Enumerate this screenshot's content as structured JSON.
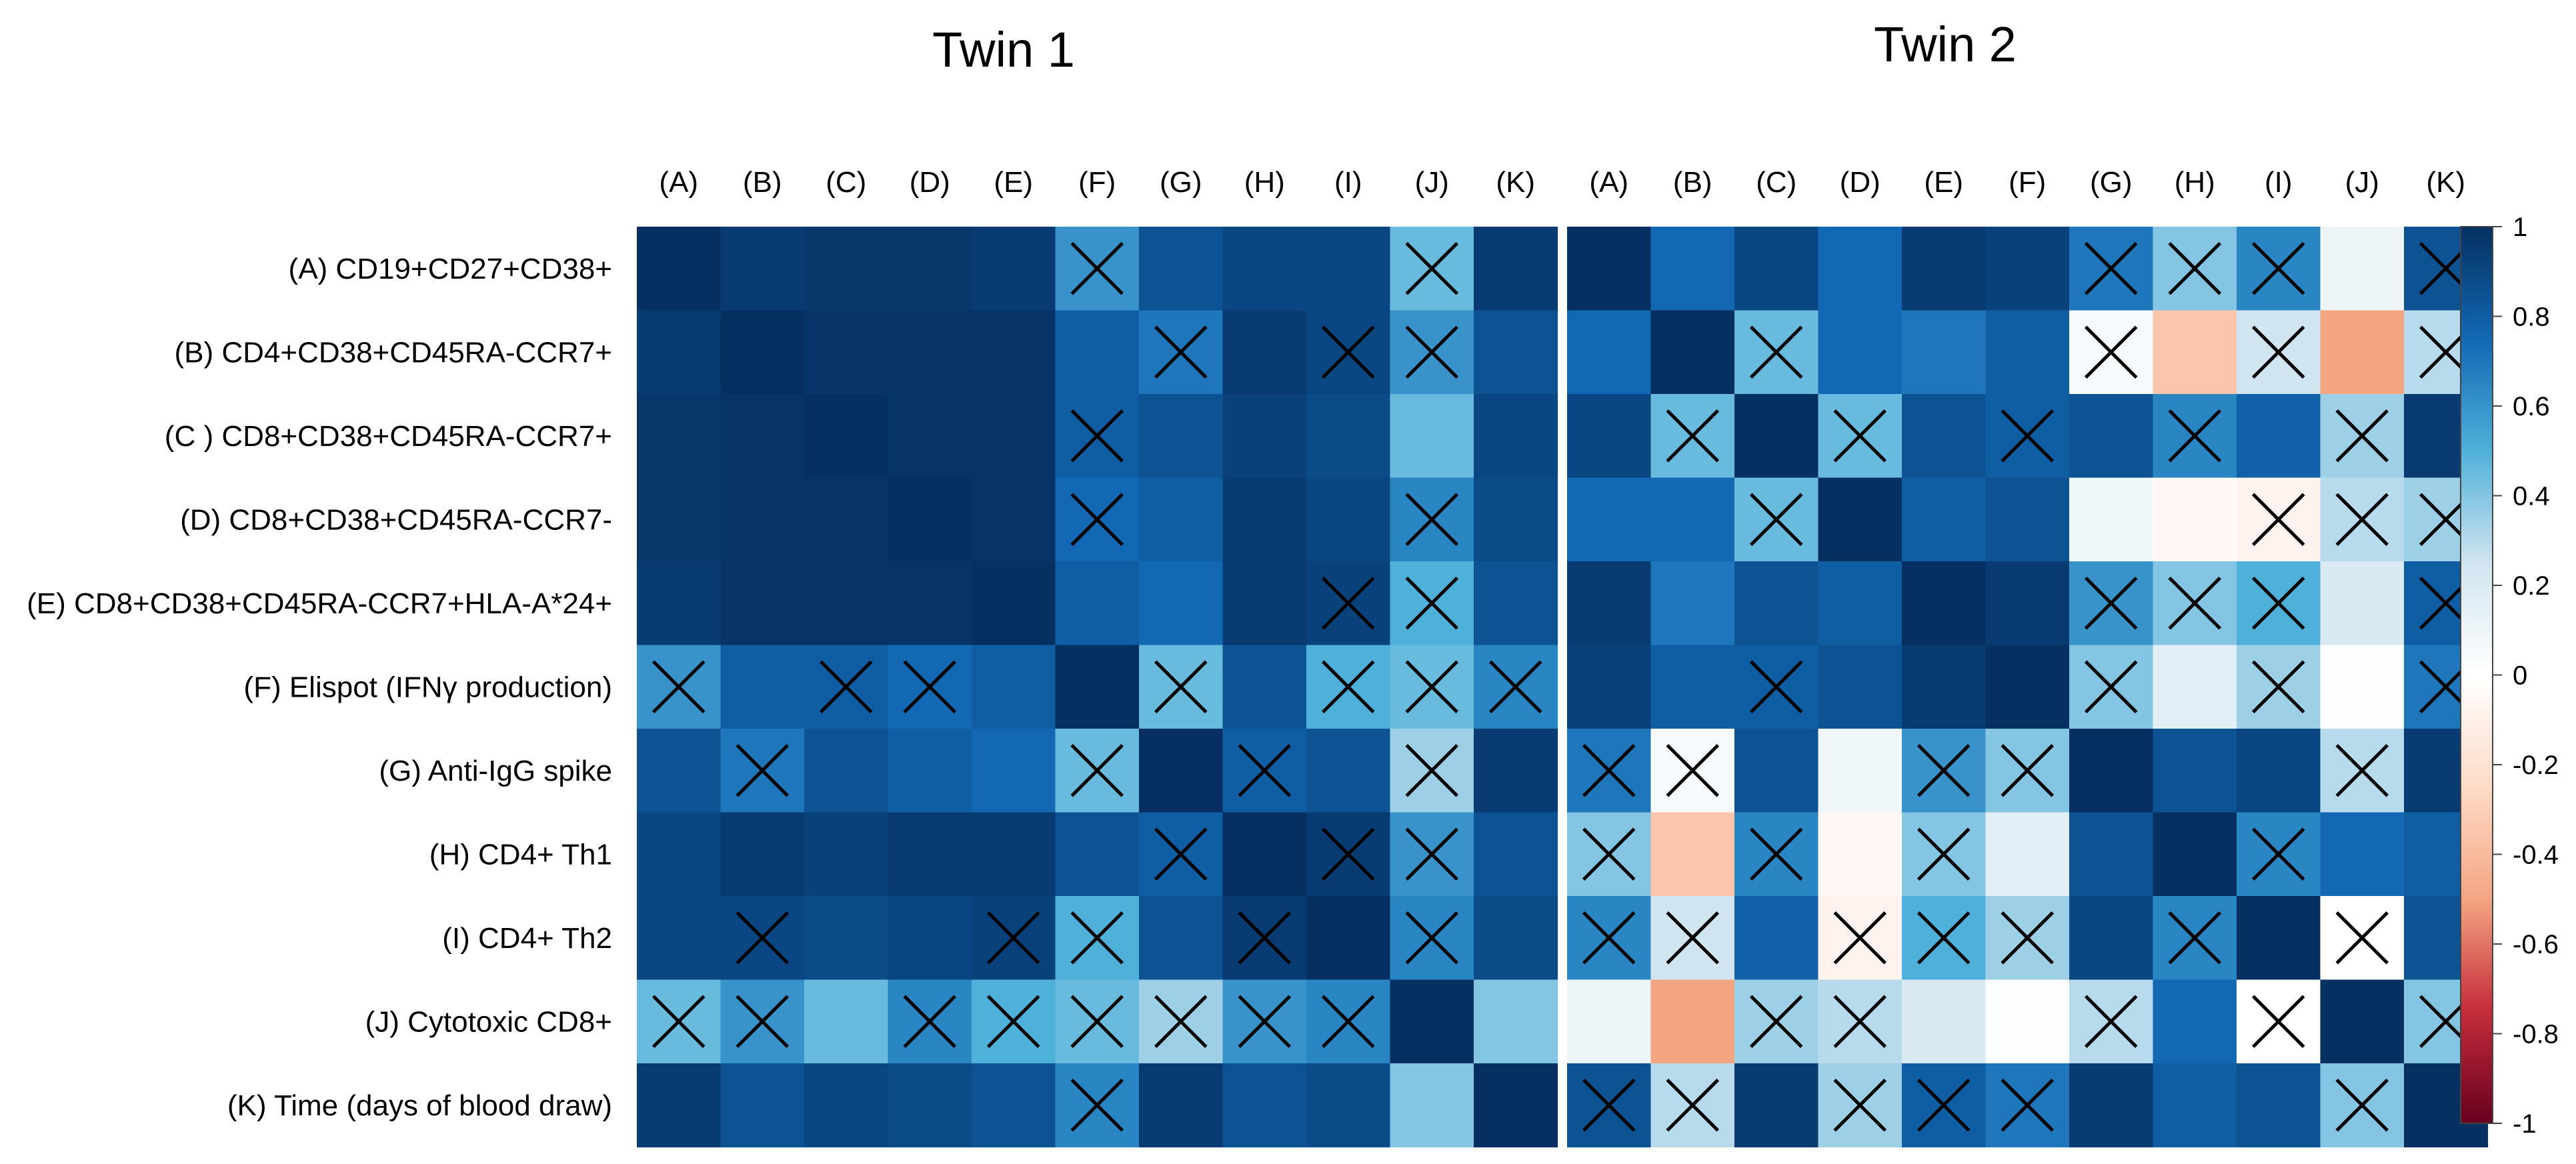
{
  "chart_data": {
    "type": "heatmap",
    "value_range": [
      -1,
      1
    ],
    "colorbar": {
      "ticks": [
        1,
        0.8,
        0.6,
        0.4,
        0.2,
        0,
        -0.2,
        -0.4,
        -0.6,
        -0.8,
        -1
      ],
      "tick_labels": [
        "1",
        "0.8",
        "0.6",
        "0.4",
        "0.2",
        "0",
        "-0.2",
        "-0.4",
        "-0.6",
        "-0.8",
        "-1"
      ],
      "colors": {
        "neg1": "#67001f",
        "neg075": "#c42c3a",
        "neg05": "#f4a582",
        "neg025": "#fddbc7",
        "zero": "#ffffff",
        "pos025": "#d1e5f0",
        "pos05": "#4fb0da",
        "pos075": "#1268b3",
        "pos1": "#053061"
      }
    },
    "row_labels": [
      "(A) CD19+CD27+CD38+",
      "(B) CD4+CD38+CD45RA-CCR7+",
      "(C ) CD8+CD38+CD45RA-CCR7+",
      "(D) CD8+CD38+CD45RA-CCR7-",
      "(E) CD8+CD38+CD45RA-CCR7+HLA-A*24+",
      "(F) Elispot (IFNγ production)",
      "(G) Anti-IgG spike",
      "(H) CD4+ Th1",
      "(I) CD4+ Th2",
      "(J) Cytotoxic CD8+",
      "(K) Time (days of blood draw)"
    ],
    "panels": [
      {
        "title": "Twin 1",
        "col_labels": [
          "(A)",
          "(B)",
          "(C)",
          "(D)",
          "(E)",
          "(F)",
          "(G)",
          "(H)",
          "(I)",
          "(J)",
          "(K)"
        ],
        "values": [
          [
            1.0,
            0.95,
            0.97,
            0.97,
            0.95,
            0.6,
            0.85,
            0.9,
            0.9,
            0.45,
            0.95
          ],
          [
            0.95,
            1.0,
            0.98,
            0.98,
            0.98,
            0.8,
            0.7,
            0.95,
            0.9,
            0.6,
            0.85
          ],
          [
            0.97,
            0.98,
            1.0,
            0.98,
            0.98,
            0.8,
            0.85,
            0.92,
            0.88,
            0.45,
            0.9
          ],
          [
            0.97,
            0.98,
            0.98,
            1.0,
            0.98,
            0.75,
            0.8,
            0.95,
            0.9,
            0.65,
            0.88
          ],
          [
            0.95,
            0.98,
            0.98,
            0.98,
            1.0,
            0.8,
            0.75,
            0.95,
            0.92,
            0.5,
            0.85
          ],
          [
            0.6,
            0.8,
            0.8,
            0.75,
            0.8,
            1.0,
            0.45,
            0.85,
            0.5,
            0.45,
            0.65
          ],
          [
            0.85,
            0.7,
            0.85,
            0.8,
            0.75,
            0.45,
            1.0,
            0.8,
            0.85,
            0.35,
            0.95
          ],
          [
            0.9,
            0.95,
            0.92,
            0.95,
            0.95,
            0.85,
            0.8,
            1.0,
            0.95,
            0.6,
            0.85
          ],
          [
            0.9,
            0.9,
            0.88,
            0.9,
            0.92,
            0.5,
            0.85,
            0.95,
            1.0,
            0.65,
            0.88
          ],
          [
            0.45,
            0.6,
            0.45,
            0.65,
            0.5,
            0.45,
            0.35,
            0.6,
            0.65,
            1.0,
            0.4
          ],
          [
            0.95,
            0.85,
            0.9,
            0.88,
            0.85,
            0.65,
            0.95,
            0.85,
            0.88,
            0.4,
            1.0
          ]
        ],
        "crosses": [
          [
            0,
            5
          ],
          [
            0,
            9
          ],
          [
            1,
            6
          ],
          [
            1,
            8
          ],
          [
            1,
            9
          ],
          [
            2,
            5
          ],
          [
            3,
            5
          ],
          [
            3,
            9
          ],
          [
            4,
            8
          ],
          [
            4,
            9
          ],
          [
            5,
            0
          ],
          [
            5,
            2
          ],
          [
            5,
            3
          ],
          [
            5,
            6
          ],
          [
            5,
            8
          ],
          [
            5,
            9
          ],
          [
            5,
            10
          ],
          [
            6,
            1
          ],
          [
            6,
            5
          ],
          [
            6,
            7
          ],
          [
            6,
            9
          ],
          [
            7,
            6
          ],
          [
            7,
            8
          ],
          [
            7,
            9
          ],
          [
            8,
            1
          ],
          [
            8,
            4
          ],
          [
            8,
            5
          ],
          [
            8,
            7
          ],
          [
            8,
            9
          ],
          [
            9,
            0
          ],
          [
            9,
            1
          ],
          [
            9,
            3
          ],
          [
            9,
            4
          ],
          [
            9,
            5
          ],
          [
            9,
            6
          ],
          [
            9,
            7
          ],
          [
            9,
            8
          ],
          [
            10,
            5
          ]
        ]
      },
      {
        "title": "Twin 2",
        "col_labels": [
          "(A)",
          "(B)",
          "(C)",
          "(D)",
          "(E)",
          "(F)",
          "(G)",
          "(H)",
          "(I)",
          "(J)",
          "(K)"
        ],
        "values": [
          [
            1.0,
            0.75,
            0.9,
            0.75,
            0.95,
            0.92,
            0.7,
            0.4,
            0.65,
            0.1,
            0.85
          ],
          [
            0.75,
            1.0,
            0.45,
            0.75,
            0.7,
            0.8,
            0.05,
            -0.35,
            0.25,
            -0.5,
            0.3
          ],
          [
            0.9,
            0.45,
            1.0,
            0.45,
            0.85,
            0.8,
            0.85,
            0.65,
            0.78,
            0.35,
            0.95
          ],
          [
            0.75,
            0.75,
            0.45,
            1.0,
            0.8,
            0.85,
            0.08,
            -0.05,
            -0.08,
            0.3,
            0.35
          ],
          [
            0.95,
            0.7,
            0.85,
            0.8,
            1.0,
            0.95,
            0.6,
            0.4,
            0.5,
            0.2,
            0.8
          ],
          [
            0.92,
            0.8,
            0.8,
            0.85,
            0.95,
            1.0,
            0.4,
            0.15,
            0.35,
            0.02,
            0.7
          ],
          [
            0.7,
            0.05,
            0.85,
            0.08,
            0.6,
            0.4,
            1.0,
            0.85,
            0.9,
            0.3,
            0.95
          ],
          [
            0.4,
            -0.35,
            0.65,
            -0.05,
            0.4,
            0.15,
            0.85,
            1.0,
            0.65,
            0.75,
            0.8
          ],
          [
            0.65,
            0.25,
            0.78,
            -0.08,
            0.5,
            0.35,
            0.9,
            0.65,
            1.0,
            0.0,
            0.85
          ],
          [
            0.1,
            -0.5,
            0.35,
            0.3,
            0.2,
            0.02,
            0.3,
            0.75,
            0.0,
            1.0,
            0.4
          ],
          [
            0.85,
            0.3,
            0.95,
            0.35,
            0.8,
            0.7,
            0.95,
            0.8,
            0.85,
            0.4,
            1.0
          ]
        ],
        "crosses": [
          [
            0,
            6
          ],
          [
            0,
            7
          ],
          [
            0,
            8
          ],
          [
            0,
            10
          ],
          [
            1,
            2
          ],
          [
            1,
            6
          ],
          [
            1,
            8
          ],
          [
            1,
            10
          ],
          [
            2,
            1
          ],
          [
            2,
            3
          ],
          [
            2,
            5
          ],
          [
            2,
            7
          ],
          [
            2,
            9
          ],
          [
            3,
            2
          ],
          [
            3,
            8
          ],
          [
            3,
            9
          ],
          [
            3,
            10
          ],
          [
            4,
            6
          ],
          [
            4,
            7
          ],
          [
            4,
            8
          ],
          [
            4,
            10
          ],
          [
            5,
            2
          ],
          [
            5,
            6
          ],
          [
            5,
            8
          ],
          [
            5,
            10
          ],
          [
            6,
            0
          ],
          [
            6,
            1
          ],
          [
            6,
            4
          ],
          [
            6,
            5
          ],
          [
            6,
            9
          ],
          [
            7,
            0
          ],
          [
            7,
            2
          ],
          [
            7,
            4
          ],
          [
            7,
            8
          ],
          [
            8,
            0
          ],
          [
            8,
            1
          ],
          [
            8,
            3
          ],
          [
            8,
            4
          ],
          [
            8,
            5
          ],
          [
            8,
            7
          ],
          [
            8,
            9
          ],
          [
            9,
            2
          ],
          [
            9,
            3
          ],
          [
            9,
            6
          ],
          [
            9,
            8
          ],
          [
            9,
            10
          ],
          [
            10,
            0
          ],
          [
            10,
            1
          ],
          [
            10,
            3
          ],
          [
            10,
            4
          ],
          [
            10,
            5
          ],
          [
            10,
            9
          ]
        ]
      }
    ]
  }
}
